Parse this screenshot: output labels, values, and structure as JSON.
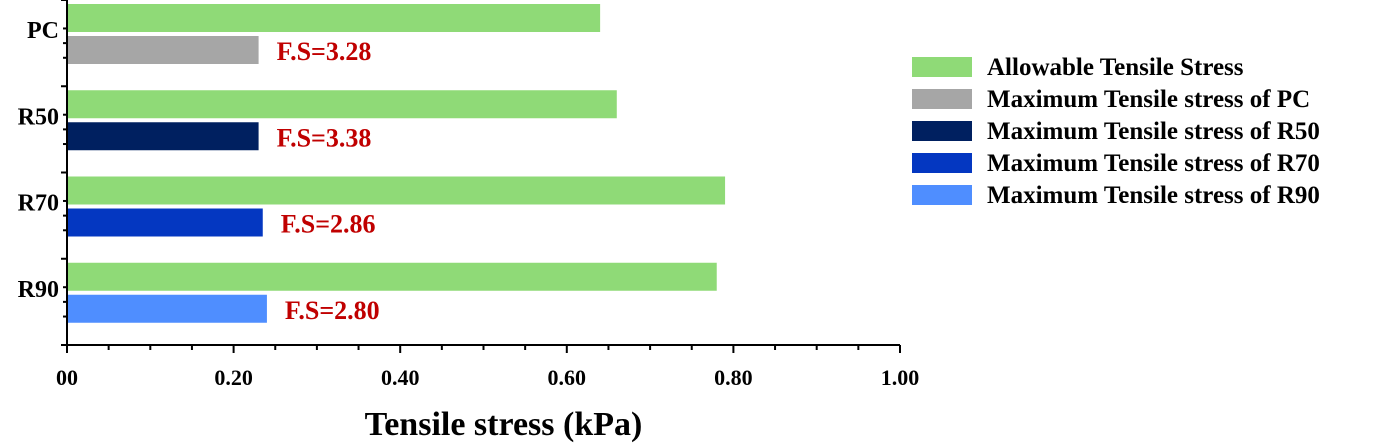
{
  "chart_data": {
    "type": "bar",
    "orientation": "horizontal",
    "categories": [
      "PC",
      "R50",
      "R70",
      "R90"
    ],
    "series": [
      {
        "name": "Allowable Tensile Stress",
        "values": [
          0.64,
          0.66,
          0.79,
          0.78
        ],
        "color": "#8fda77"
      },
      {
        "name": "Maximum Tensile stress of PC",
        "values": [
          0.23,
          null,
          null,
          null
        ],
        "color": "#a6a6a6"
      },
      {
        "name": "Maximum Tensile stress of R50",
        "values": [
          null,
          0.23,
          null,
          null
        ],
        "color": "#002060"
      },
      {
        "name": "Maximum Tensile stress of R70",
        "values": [
          null,
          null,
          0.235,
          null
        ],
        "color": "#0437c1"
      },
      {
        "name": "Maximum Tensile stress of R90",
        "values": [
          null,
          null,
          null,
          0.24
        ],
        "color": "#4f8eff"
      }
    ],
    "annotations": [
      "F.S=3.28",
      "F.S=3.38",
      "F.S=2.86",
      "F.S=2.80"
    ],
    "annotation_color": "#c00000",
    "xlabel": "Tensile stress (kPa)",
    "ylabel": "",
    "xlim": [
      0,
      1.0
    ],
    "xticks": [
      "00",
      "0.20",
      "0.40",
      "0.60",
      "0.80",
      "1.00"
    ],
    "xtick_values": [
      0,
      0.2,
      0.4,
      0.6,
      0.8,
      1.0
    ],
    "grid": false,
    "legend_position": "right"
  }
}
